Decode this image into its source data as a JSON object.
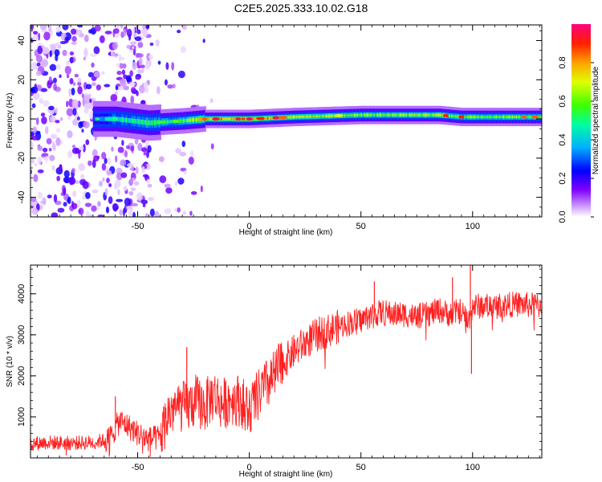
{
  "title": "C2E5.2025.333.10.02.G18",
  "chart_data": [
    {
      "type": "heatmap",
      "id": "spectrogram",
      "title": "C2E5.2025.333.10.02.G18",
      "xlabel": "Height of straight line (km)",
      "ylabel": "Frequency (Hz)",
      "xlim": [
        -98,
        131
      ],
      "ylim": [
        -50,
        48
      ],
      "xticks": [
        -50,
        0,
        50,
        100
      ],
      "yticks": [
        -40,
        -20,
        0,
        20,
        40
      ],
      "colorbar": {
        "label": "Normalized spectral amplitude",
        "range": [
          0,
          1
        ],
        "ticks": [
          "0.0",
          "0.2",
          "0.4",
          "0.6",
          "0.8"
        ],
        "colors": [
          "#ffffff",
          "#9a00ff",
          "#0000ff",
          "#00d0ff",
          "#00ff00",
          "#ffff00",
          "#ff8000",
          "#ff0000",
          "#ff00a0"
        ]
      },
      "ridge": {
        "description_points_x_km": [
          -98,
          -68,
          -60,
          -45,
          -30,
          -20,
          0,
          20,
          50,
          85,
          95,
          100,
          131
        ],
        "center_frequency_hz": [
          0,
          0,
          0,
          -2,
          -1,
          0,
          0,
          1,
          2,
          2,
          1,
          1,
          1
        ],
        "peak_amplitude": [
          0.05,
          0.3,
          0.45,
          0.5,
          0.55,
          0.75,
          0.85,
          0.7,
          0.6,
          0.65,
          0.55,
          0.6,
          0.6
        ]
      }
    },
    {
      "type": "line",
      "id": "snr",
      "xlabel": "Height of straight line (km)",
      "ylabel": "SNR (10 * v/v)",
      "xlim": [
        -98,
        131
      ],
      "ylim": [
        0,
        4700
      ],
      "xticks": [
        -50,
        0,
        50,
        100
      ],
      "yticks": [
        1000,
        2000,
        3000,
        4000
      ],
      "color": "#ff2020",
      "series": [
        {
          "name": "SNR",
          "x": [
            -98,
            -90,
            -80,
            -70,
            -63,
            -58,
            -55,
            -50,
            -45,
            -40,
            -36,
            -32,
            -28,
            -24,
            -20,
            -16,
            -12,
            -8,
            -4,
            0,
            5,
            10,
            15,
            20,
            25,
            30,
            35,
            40,
            45,
            50,
            55,
            60,
            65,
            70,
            75,
            80,
            85,
            90,
            95,
            98,
            100,
            103,
            110,
            120,
            131
          ],
          "y": [
            350,
            380,
            360,
            380,
            450,
            900,
            800,
            600,
            450,
            500,
            1100,
            1300,
            1200,
            1400,
            1250,
            1550,
            1300,
            1450,
            1400,
            1150,
            1600,
            1900,
            2300,
            2600,
            2800,
            3000,
            3100,
            3200,
            3300,
            3350,
            3500,
            3550,
            3500,
            3500,
            3450,
            3500,
            3600,
            3500,
            3600,
            3300,
            3700,
            3700,
            3700,
            3750,
            3700
          ],
          "spikes": [
            {
              "x": -28,
              "y": 2700
            },
            {
              "x": -60,
              "y": 1500
            },
            {
              "x": 56,
              "y": 4300
            },
            {
              "x": 91,
              "y": 4400
            },
            {
              "x": 99,
              "y": 4700
            },
            {
              "x": 99.5,
              "y": 2050
            }
          ]
        }
      ]
    }
  ]
}
